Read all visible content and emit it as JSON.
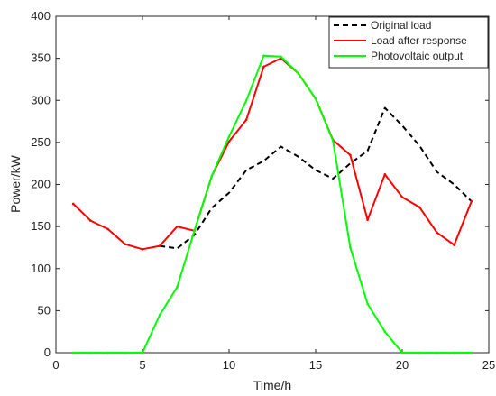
{
  "chart_data": {
    "type": "line",
    "title": "",
    "xlabel": "Time/h",
    "ylabel": "Power/kW",
    "xlim": [
      0,
      25
    ],
    "ylim": [
      0,
      400
    ],
    "xticks": [
      0,
      5,
      10,
      15,
      20,
      25
    ],
    "yticks": [
      0,
      50,
      100,
      150,
      200,
      250,
      300,
      350,
      400
    ],
    "grid": false,
    "legend_position": "top-right",
    "series": [
      {
        "name": "Original load",
        "color": "#000000",
        "style": "dashed",
        "x": [
          6,
          7,
          8,
          9,
          10,
          11,
          12,
          13,
          14,
          15,
          16,
          17,
          18,
          19,
          20,
          21,
          22,
          23,
          24
        ],
        "values": [
          127,
          124,
          140,
          172,
          190,
          217,
          228,
          245,
          233,
          217,
          207,
          225,
          240,
          291,
          270,
          246,
          215,
          200,
          180
        ]
      },
      {
        "name": "Load after response",
        "color": "#ff0000",
        "style": "solid",
        "x": [
          1,
          2,
          3,
          4,
          5,
          6,
          7,
          8,
          9,
          10,
          11,
          12,
          13,
          14,
          15,
          16,
          17,
          18,
          19,
          20,
          21,
          22,
          23,
          24
        ],
        "values": [
          177,
          157,
          147,
          129,
          123,
          127,
          150,
          145,
          210,
          251,
          277,
          340,
          350,
          332,
          302,
          253,
          235,
          158,
          212,
          185,
          173,
          143,
          128,
          180
        ]
      },
      {
        "name": "Photovoltaic output",
        "color": "#00ff00",
        "style": "solid",
        "x": [
          1,
          2,
          3,
          4,
          5,
          6,
          7,
          8,
          9,
          10,
          11,
          12,
          13,
          14,
          15,
          16,
          17,
          18,
          19,
          20,
          21,
          22,
          23,
          24
        ],
        "values": [
          0,
          0,
          0,
          0,
          0,
          45,
          78,
          145,
          210,
          257,
          300,
          353,
          352,
          332,
          302,
          252,
          125,
          58,
          25,
          0,
          0,
          0,
          0,
          0
        ]
      }
    ]
  }
}
